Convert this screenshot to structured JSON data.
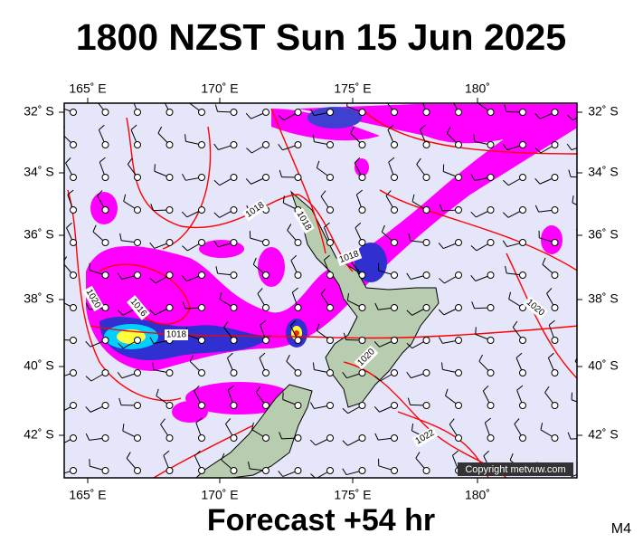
{
  "header": {
    "title": "1800 NZST Sun 15 Jun 2025"
  },
  "footer": {
    "forecast": "Forecast +54 hr",
    "model": "M4"
  },
  "map": {
    "lon_labels": [
      "165˚ E",
      "170˚ E",
      "175˚ E",
      "180˚"
    ],
    "lat_labels": [
      "32˚ S",
      "34˚ S",
      "36˚ S",
      "38˚ S",
      "40˚ S",
      "42˚ S"
    ],
    "isobar_labels": [
      "1018",
      "1018",
      "1018",
      "1016",
      "1020",
      "1018",
      "1020",
      "1020",
      "1022"
    ],
    "copyright": "Copyright metvuw.com"
  }
}
